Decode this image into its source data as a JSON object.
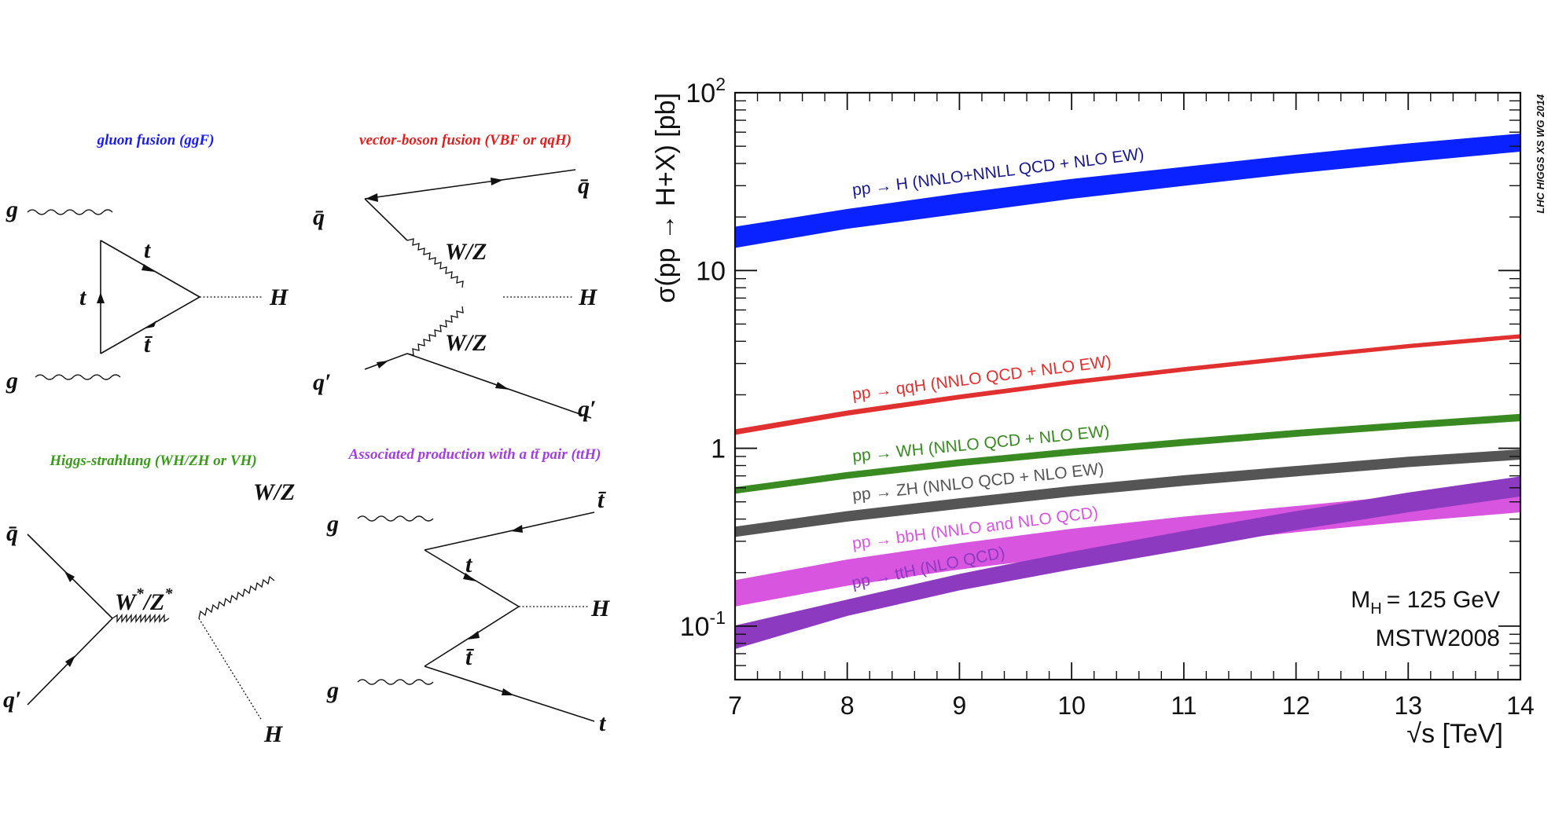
{
  "diagrams": {
    "ggf": {
      "title": "gluon fusion (ggF)",
      "color": "#1a1aff",
      "g1": "g",
      "g2": "g",
      "t_top": "t",
      "t_left": "t",
      "tbar": "t̄",
      "H": "H"
    },
    "vbf": {
      "title": "vector-boson fusion (VBF or qqH)",
      "color": "#e02020",
      "qbar_left": "q̄",
      "qbar_right": "q̄",
      "WZ_top": "W/Z",
      "WZ_bot": "W/Z",
      "H": "H",
      "qprime_left": "q′",
      "qprime_right": "q′"
    },
    "vh": {
      "title": "Higgs-strahlung (WH/ZH or VH)",
      "color": "#3a9a1a",
      "qbar": "q̄",
      "qprime": "q′",
      "W_star": "W",
      "star1": "*",
      "sep": "/Z",
      "star2": "*",
      "WZ": "W/Z",
      "H": "H"
    },
    "tth": {
      "title": "Associated production with a tt̄ pair (ttH)",
      "color": "#a040e0",
      "g1": "g",
      "g2": "g",
      "tbar": "t̄",
      "t_mid": "t",
      "tbar_mid": "t̄",
      "H": "H",
      "t_bot": "t"
    }
  },
  "chart_data": {
    "type": "area",
    "title": "",
    "xlabel": "√s [TeV]",
    "ylabel": "σ(pp → H+X) [pb]",
    "xlim": [
      7,
      14
    ],
    "ylim": [
      0.05,
      100
    ],
    "yscale": "log",
    "x_ticks": [
      "7",
      "8",
      "9",
      "10",
      "11",
      "12",
      "13",
      "14"
    ],
    "y_ticks": [
      {
        "value": 100,
        "base": "10",
        "exp": "2"
      },
      {
        "value": 10,
        "base": "10",
        "exp": ""
      },
      {
        "value": 1,
        "base": "1",
        "exp": ""
      },
      {
        "value": 0.1,
        "base": "10",
        "exp": "-1"
      }
    ],
    "watermark": "LHC HIGGS XS WG 2014",
    "annotation_mass_prefix": "M",
    "annotation_mass_sub": "H",
    "annotation_mass_value": "= 125 GeV",
    "annotation_pdf": "MSTW2008",
    "x": [
      7,
      8,
      9,
      10,
      11,
      12,
      13,
      14
    ],
    "series": [
      {
        "name": "pp → H (NNLO+NNLL QCD + NLO EW)",
        "color": "#0a22ff",
        "label_color": "#1a1a8c",
        "lower": [
          13.5,
          17.3,
          21.0,
          25.5,
          30.2,
          35.5,
          41.0,
          47.0
        ],
        "upper": [
          17.5,
          22.0,
          27.0,
          32.5,
          38.0,
          44.5,
          51.5,
          58.5
        ]
      },
      {
        "name": "pp → qqH (NNLO QCD + NLO EW)",
        "color": "#e03030",
        "label_color": "#e03030",
        "lower": [
          1.2,
          1.54,
          1.9,
          2.3,
          2.72,
          3.18,
          3.68,
          4.18
        ],
        "upper": [
          1.27,
          1.62,
          1.99,
          2.4,
          2.84,
          3.31,
          3.83,
          4.35
        ]
      },
      {
        "name": "pp → WH (NNLO QCD + NLO EW)",
        "color": "#3a8a22",
        "label_color": "#3a8a22",
        "lower": [
          0.56,
          0.68,
          0.8,
          0.92,
          1.04,
          1.17,
          1.3,
          1.43
        ],
        "upper": [
          0.6,
          0.73,
          0.86,
          0.99,
          1.12,
          1.26,
          1.4,
          1.55
        ]
      },
      {
        "name": "pp → ZH (NNLO QCD + NLO EW)",
        "color": "#555555",
        "label_color": "#555555",
        "lower": [
          0.32,
          0.39,
          0.46,
          0.54,
          0.62,
          0.7,
          0.79,
          0.87
        ],
        "upper": [
          0.36,
          0.44,
          0.52,
          0.61,
          0.7,
          0.79,
          0.89,
          0.98
        ]
      },
      {
        "name": "pp → bbH (NNLO and NLO QCD)",
        "color": "#d855e0",
        "label_color": "#d855e0",
        "lower": [
          0.13,
          0.17,
          0.21,
          0.25,
          0.29,
          0.34,
          0.39,
          0.44
        ],
        "upper": [
          0.18,
          0.235,
          0.29,
          0.35,
          0.41,
          0.47,
          0.54,
          0.61
        ]
      },
      {
        "name": "pp → ttH (NLO QCD)",
        "color": "#8c3ac0",
        "label_color": "#8c3ac0",
        "lower": [
          0.075,
          0.115,
          0.16,
          0.21,
          0.27,
          0.35,
          0.44,
          0.54
        ],
        "upper": [
          0.1,
          0.14,
          0.195,
          0.26,
          0.34,
          0.44,
          0.56,
          0.69
        ]
      }
    ]
  }
}
